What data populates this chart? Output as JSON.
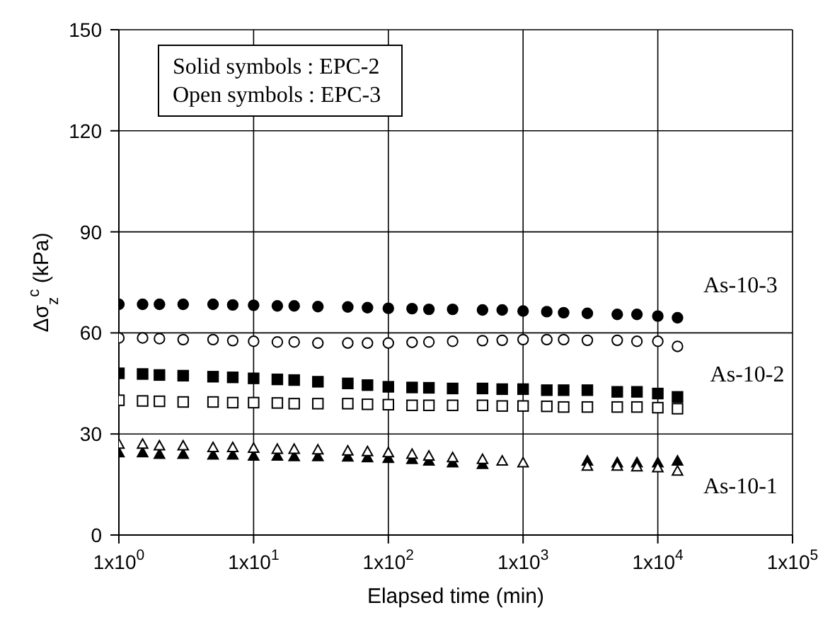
{
  "chart_data": {
    "type": "scatter",
    "xlabel": "Elapsed time (min)",
    "ylabel": "Δσ$_{z}$$^{c}$ (kPa)",
    "x": [
      1,
      1.5,
      2,
      3,
      5,
      7,
      10,
      15,
      20,
      30,
      50,
      70,
      100,
      150,
      200,
      300,
      500,
      700,
      1000,
      1500,
      2000,
      3000,
      5000,
      7000,
      10000,
      14000
    ],
    "series": [
      {
        "color": "#000000",
        "marker": "circle",
        "values": [
          68.5,
          68.5,
          68.5,
          68.5,
          68.5,
          68.3,
          68.2,
          68,
          68,
          67.8,
          67.7,
          67.5,
          67.3,
          67.2,
          67,
          67,
          66.8,
          66.8,
          66.5,
          66.3,
          66,
          65.8,
          65.5,
          65.5,
          65,
          64.5
        ]
      },
      {
        "color": "#ffffff",
        "marker": "circle",
        "values": [
          58.5,
          58.5,
          58.3,
          58,
          58,
          57.7,
          57.5,
          57.3,
          57.3,
          57,
          57,
          57,
          57,
          57.2,
          57.3,
          57.5,
          57.7,
          57.8,
          58,
          58,
          58,
          57.8,
          57.8,
          57.5,
          57.5,
          56
        ]
      },
      {
        "color": "#000000",
        "marker": "square",
        "values": [
          48,
          47.8,
          47.5,
          47.3,
          47,
          46.8,
          46.5,
          46.2,
          46,
          45.5,
          45,
          44.5,
          44,
          43.8,
          43.7,
          43.5,
          43.5,
          43.3,
          43.3,
          43,
          43,
          43,
          42.5,
          42.5,
          42,
          41
        ]
      },
      {
        "color": "#ffffff",
        "marker": "square",
        "values": [
          40,
          39.8,
          39.7,
          39.5,
          39.5,
          39.3,
          39.3,
          39.2,
          39,
          39,
          39,
          38.8,
          38.7,
          38.5,
          38.5,
          38.5,
          38.5,
          38.3,
          38.3,
          38.2,
          38,
          38,
          38,
          38,
          37.8,
          37.5
        ]
      },
      {
        "color": "#000000",
        "marker": "triangle",
        "values": [
          24.5,
          24.5,
          24,
          24,
          23.8,
          23.8,
          23.5,
          23.5,
          23.3,
          23.3,
          23.2,
          23,
          22.8,
          22.5,
          22,
          21.5,
          21,
          null,
          null,
          null,
          null,
          22,
          21.5,
          21.5,
          21.5,
          22
        ]
      },
      {
        "color": "#ffffff",
        "marker": "triangle",
        "values": [
          27,
          27,
          26.5,
          26.5,
          26,
          26,
          25.8,
          25.5,
          25.5,
          25.3,
          25,
          24.8,
          24.5,
          24,
          23.5,
          23,
          22.5,
          22,
          21.5,
          null,
          null,
          20.5,
          20.5,
          20.3,
          20,
          19
        ]
      }
    ],
    "log": "x",
    "xlim": [
      1,
      100000
    ],
    "xticks": [
      {
        "value": 1,
        "label": "1x10$^{0}$"
      },
      {
        "value": 10,
        "label": "1x10$^{1}$"
      },
      {
        "value": 100,
        "label": "1x10$^{2}$"
      },
      {
        "value": 1000,
        "label": "1x10$^{3}$"
      },
      {
        "value": 10000,
        "label": "1x10$^{4}$"
      },
      {
        "value": 100000,
        "label": "1x10$^{5}$"
      }
    ],
    "ylim": [
      0,
      150
    ],
    "yticks": [
      0,
      30,
      60,
      90,
      120,
      150
    ],
    "grid": true,
    "annotations": [
      "Solid symbols : EPC-2",
      "Open symbols : EPC-3",
      "As-10-3",
      "As-10-2",
      "As-10-1"
    ]
  }
}
